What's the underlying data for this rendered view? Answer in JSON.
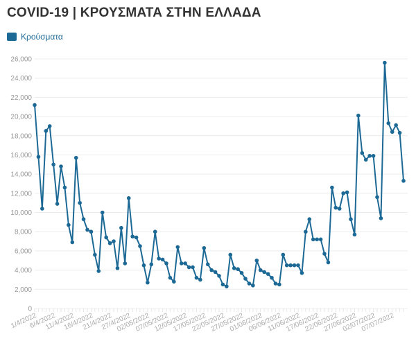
{
  "chart_data": {
    "type": "line",
    "title": "COVID-19 | ΚΡΟΥΣΜΑΤΑ ΣΤΗΝ ΕΛΛΑΔΑ",
    "legend": [
      "Κρούσματα"
    ],
    "legend_position": "top-left",
    "color": "#1d6996",
    "xlabel": "",
    "ylabel": "",
    "ylim": [
      0,
      26000
    ],
    "yticks": [
      0,
      2000,
      4000,
      6000,
      8000,
      10000,
      12000,
      14000,
      16000,
      18000,
      20000,
      22000,
      24000,
      26000
    ],
    "ytick_labels": [
      "0",
      "2,000",
      "4,000",
      "6,000",
      "8,000",
      "10,000",
      "12,000",
      "14,000",
      "16,000",
      "18,000",
      "20,000",
      "22,000",
      "24,000",
      "26,000"
    ],
    "xtick_every": 5,
    "xtick_labels": [
      "1/4/2022",
      "6/4/2022",
      "11/4/2022",
      "16/4/2022",
      "21/4/2022",
      "27/4/2022",
      "02/05/2022",
      "07/05/2022",
      "12/05/2022",
      "17/05/2022",
      "22/05/2022",
      "27/05/2022",
      "01/06/2022",
      "06/06/2022",
      "11/06/2022",
      "17/06/2022",
      "22/06/2022",
      "27/06/2022",
      "02/07/2022",
      "07/07/2022"
    ],
    "grid": true,
    "series": [
      {
        "name": "Κρούσματα",
        "values": [
          21200,
          15800,
          10400,
          18500,
          19000,
          15000,
          10900,
          14800,
          12600,
          8700,
          6900,
          15700,
          11000,
          9300,
          8200,
          8000,
          5600,
          3900,
          10000,
          7400,
          6800,
          7000,
          4200,
          8400,
          4700,
          11500,
          7500,
          7400,
          6500,
          4500,
          2700,
          4600,
          8000,
          5200,
          5100,
          4700,
          3200,
          2800,
          6400,
          4700,
          4700,
          4300,
          4300,
          3200,
          3000,
          6300,
          4600,
          4000,
          3800,
          3400,
          2500,
          2300,
          5600,
          4200,
          4100,
          3700,
          3100,
          2600,
          2400,
          5000,
          4000,
          3800,
          3600,
          3200,
          2600,
          2500,
          5600,
          4500,
          4500,
          4500,
          4500,
          3700,
          8000,
          9300,
          7200,
          7200,
          7200,
          5700,
          4800,
          12600,
          10500,
          10400,
          12000,
          12100,
          9300,
          7700,
          20100,
          16200,
          15500,
          15900,
          15900,
          11600,
          9400,
          25600,
          19300,
          18400,
          19100,
          18300,
          13300
        ]
      }
    ]
  }
}
